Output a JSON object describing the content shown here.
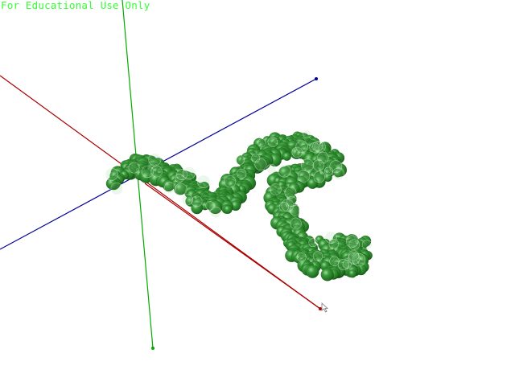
{
  "viewer": {
    "watermark": "For Educational Use Only",
    "watermark_color": "#33ff33",
    "background_color": "#ffffff"
  },
  "axes": [
    {
      "name": "x-axis",
      "color": "#aa0000"
    },
    {
      "name": "y-axis",
      "color": "#00aa00"
    },
    {
      "name": "z-axis",
      "color": "#000099"
    }
  ],
  "molecule": {
    "representation": "space-filling",
    "color": "#2e8b2e",
    "highlight_color": "#8fd08f",
    "shadow_color": "#0f4d0f"
  },
  "cursor": {
    "icon": "mouse-pointer-icon"
  }
}
